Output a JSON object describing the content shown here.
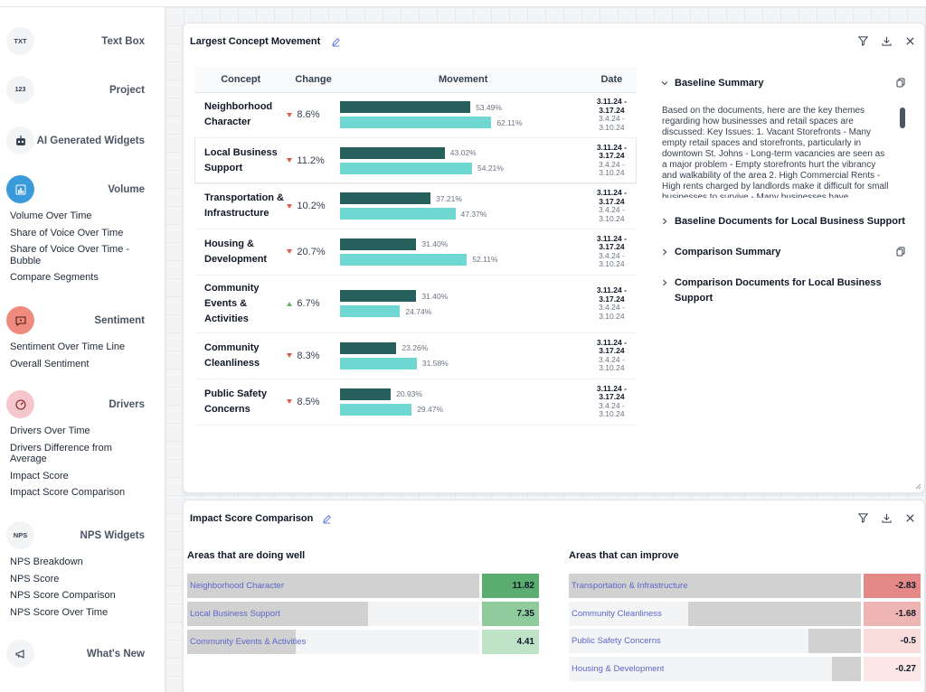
{
  "sidebar": {
    "sections": [
      {
        "icon": "text-box-icon",
        "icon_text": "TXT",
        "title": "Text Box",
        "items": []
      },
      {
        "icon": "project-icon",
        "icon_text": "123",
        "title": "Project",
        "items": []
      },
      {
        "icon": "robot-icon",
        "icon_text": "",
        "title": "AI Generated Widgets",
        "items": []
      },
      {
        "icon": "bar-chart-icon",
        "icon_text": "",
        "title": "Volume",
        "items": [
          "Volume Over Time",
          "Share of Voice Over Time",
          "Share of Voice Over Time - Bubble",
          "Compare Segments"
        ]
      },
      {
        "icon": "chat-icon",
        "icon_text": "",
        "title": "Sentiment",
        "items": [
          "Sentiment Over Time Line",
          "Overall Sentiment"
        ]
      },
      {
        "icon": "gauge-icon",
        "icon_text": "",
        "title": "Drivers",
        "items": [
          "Drivers Over Time",
          "Drivers Difference from Average",
          "Impact Score",
          "Impact Score Comparison"
        ]
      },
      {
        "icon": "nps-icon",
        "icon_text": "NPS",
        "title": "NPS Widgets",
        "items": [
          "NPS Breakdown",
          "NPS Score",
          "NPS Score Comparison",
          "NPS Score Over Time"
        ]
      },
      {
        "icon": "megaphone-icon",
        "icon_text": "",
        "title": "What's New",
        "items": []
      }
    ],
    "colors": {
      "volume": "#3b9ad9",
      "sentiment": "#ef8a7e",
      "drivers": "#f5c6cc"
    }
  },
  "concept_card": {
    "title": "Largest Concept Movement",
    "columns": [
      "Concept",
      "Change",
      "Movement",
      "Date"
    ],
    "rows": [
      {
        "concept": "Neighborhood Character",
        "direction": "down",
        "change": "8.6%",
        "baseline": 53.49,
        "baseline_label": "53.49%",
        "comparison": 62.11,
        "comparison_label": "62.11%",
        "date1": "3.11.24 -",
        "date2": "3.17.24",
        "date3": "3.4.24 -",
        "date4": "3.10.24"
      },
      {
        "concept": "Local Business Support",
        "direction": "down",
        "change": "11.2%",
        "baseline": 43.02,
        "baseline_label": "43.02%",
        "comparison": 54.21,
        "comparison_label": "54.21%",
        "date1": "3.11.24 -",
        "date2": "3.17.24",
        "date3": "3.4.24 -",
        "date4": "3.10.24"
      },
      {
        "concept": "Transportation & Infrastructure",
        "direction": "down",
        "change": "10.2%",
        "baseline": 37.21,
        "baseline_label": "37.21%",
        "comparison": 47.37,
        "comparison_label": "47.37%",
        "date1": "3.11.24 -",
        "date2": "3.17.24",
        "date3": "3.4.24 -",
        "date4": "3.10.24"
      },
      {
        "concept": "Housing & Development",
        "direction": "down",
        "change": "20.7%",
        "baseline": 31.4,
        "baseline_label": "31.40%",
        "comparison": 52.11,
        "comparison_label": "52.11%",
        "date1": "3.11.24 -",
        "date2": "3.17.24",
        "date3": "3.4.24 -",
        "date4": "3.10.24"
      },
      {
        "concept": "Community Events & Activities",
        "direction": "up",
        "change": "6.7%",
        "baseline": 31.4,
        "baseline_label": "31.40%",
        "comparison": 24.74,
        "comparison_label": "24.74%",
        "date1": "3.11.24 -",
        "date2": "3.17.24",
        "date3": "3.4.24 -",
        "date4": "3.10.24"
      },
      {
        "concept": "Community Cleanliness",
        "direction": "down",
        "change": "8.3%",
        "baseline": 23.26,
        "baseline_label": "23.26%",
        "comparison": 31.58,
        "comparison_label": "31.58%",
        "date1": "3.11.24 -",
        "date2": "3.17.24",
        "date3": "3.4.24 -",
        "date4": "3.10.24"
      },
      {
        "concept": "Public Safety Concerns",
        "direction": "down",
        "change": "8.5%",
        "baseline": 20.93,
        "baseline_label": "20.93%",
        "comparison": 29.47,
        "comparison_label": "29.47%",
        "date1": "3.11.24 -",
        "date2": "3.17.24",
        "date3": "3.4.24 -",
        "date4": "3.10.24"
      }
    ],
    "colors": {
      "baseline": "#275f5c",
      "comparison": "#6fd8d3",
      "down": "#e05c4b",
      "up": "#6bb36b"
    },
    "panel": {
      "baseline_summary_title": "Baseline Summary",
      "baseline_summary_text": "Based on the documents, here are the key themes regarding how businesses and retail spaces are discussed: Key Issues: 1. Vacant Storefronts - Many empty retail spaces and storefronts, particularly in downtown St. Johns - Long-term vacancies are seen as a major problem - Empty storefronts hurt the vibrancy and walkability of the area 2. High Commercial Rents - High rents charged by landlords make it difficult for small businesses to survive - Many businesses have",
      "baseline_docs_title": "Baseline Documents for Local Business Support",
      "comparison_summary_title": "Comparison Summary",
      "comparison_docs_title": "Comparison Documents for Local Business Support"
    }
  },
  "impact_card": {
    "title": "Impact Score Comparison",
    "well_title": "Areas that are doing well",
    "improve_title": "Areas that can improve",
    "well": [
      {
        "label": "Neighborhood Character",
        "fill": 1.0,
        "score": "11.82",
        "color": "#5aad6e"
      },
      {
        "label": "Local Business Support",
        "fill": 0.62,
        "score": "7.35",
        "color": "#8fcb9c"
      },
      {
        "label": "Community Events & Activities",
        "fill": 0.37,
        "score": "4.41",
        "color": "#bfe3c7"
      }
    ],
    "improve": [
      {
        "label": "Transportation & Infrastructure",
        "fill": 1.0,
        "score": "-2.83",
        "color": "#e48888"
      },
      {
        "label": "Community Cleanliness",
        "fill": 0.59,
        "score": "-1.68",
        "color": "#efb5b4"
      },
      {
        "label": "Public Safety Concerns",
        "fill": 0.18,
        "score": "-0.5",
        "color": "#f8dcdb"
      },
      {
        "label": "Housing & Development",
        "fill": 0.1,
        "score": "-0.27",
        "color": "#fae7e6"
      }
    ]
  }
}
